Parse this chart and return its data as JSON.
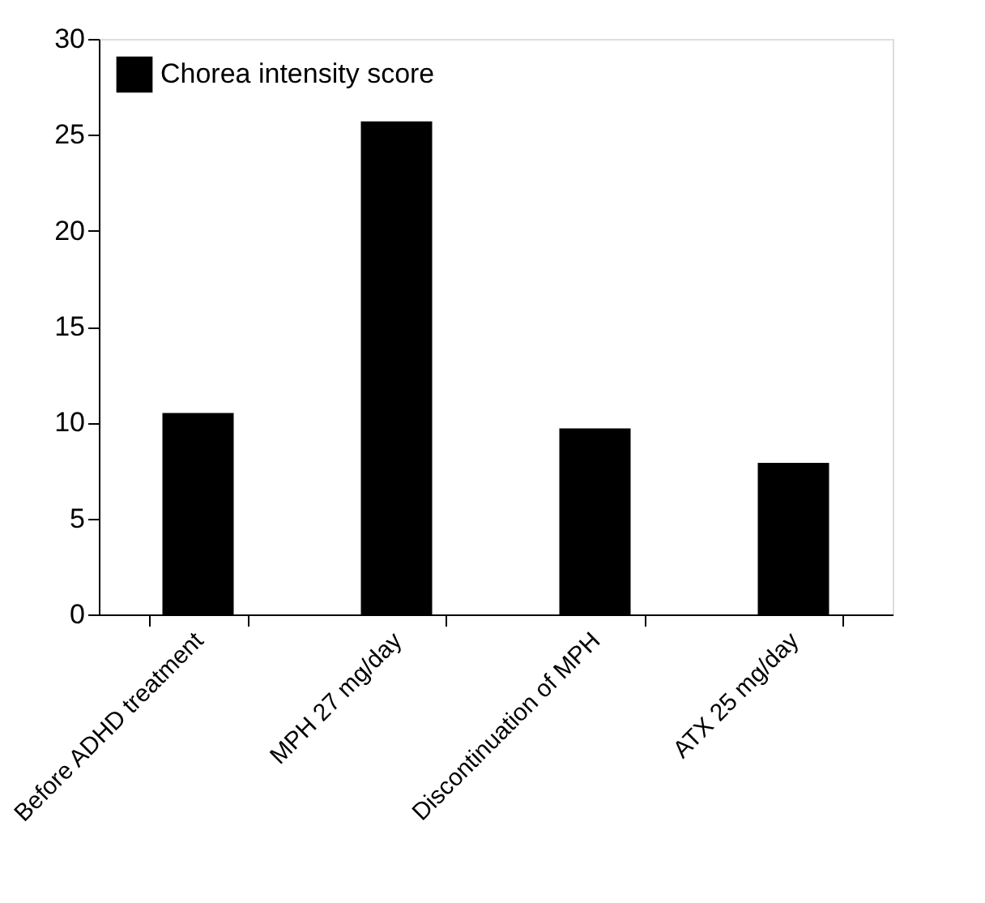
{
  "chart_data": {
    "type": "bar",
    "categories": [
      "Before ADHD treatment",
      "MPH 27 mg/day",
      "Discontinuation of MPH",
      "ATX 25 mg/day"
    ],
    "series": [
      {
        "name": "Chorea intensity score",
        "color": "#000000",
        "values": [
          10.5,
          25.7,
          9.7,
          7.9
        ]
      }
    ],
    "ylim": [
      0,
      30
    ],
    "yticks": [
      0,
      5,
      10,
      15,
      20,
      25,
      30
    ],
    "grid": false,
    "legend": "top left"
  }
}
